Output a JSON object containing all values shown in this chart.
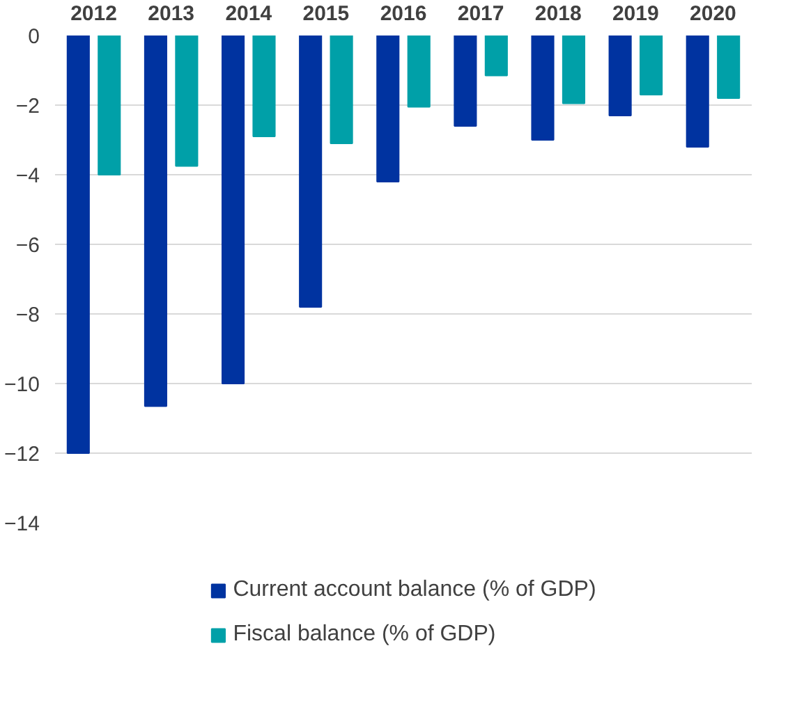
{
  "chart_data": {
    "type": "bar",
    "categories": [
      "2012",
      "2013",
      "2014",
      "2015",
      "2016",
      "2017",
      "2018",
      "2019",
      "2020"
    ],
    "series": [
      {
        "name": "Current account balance (% of GDP)",
        "color": "#0033a0",
        "values": [
          -12.0,
          -10.65,
          -10.0,
          -7.8,
          -4.2,
          -2.6,
          -3.0,
          -2.3,
          -3.2
        ]
      },
      {
        "name": "Fiscal balance (% of GDP)",
        "color": "#00a0a8",
        "values": [
          -4.0,
          -3.75,
          -2.9,
          -3.1,
          -2.05,
          -1.15,
          -1.95,
          -1.7,
          -1.8
        ]
      }
    ],
    "ylim": [
      -14,
      0
    ],
    "yticks": [
      -14,
      -12,
      -10,
      -8,
      -6,
      -4,
      -2,
      0
    ],
    "grid": "y",
    "legend": "bottom"
  }
}
